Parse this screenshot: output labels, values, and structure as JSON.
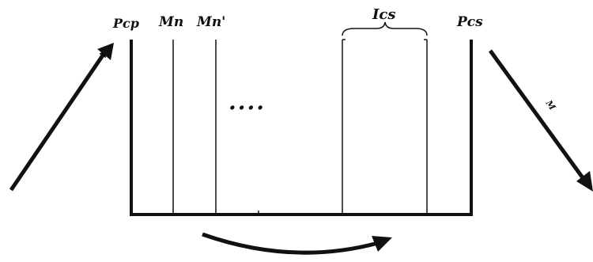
{
  "labels": {
    "pcp": "Pcp",
    "mn": "Mn",
    "mn_prime": "Mn'",
    "ellipsis": "....",
    "ics": "Ics",
    "pcs": "Pcs",
    "m": "M"
  },
  "colors": {
    "ink": "#111111",
    "background": "#ffffff"
  }
}
